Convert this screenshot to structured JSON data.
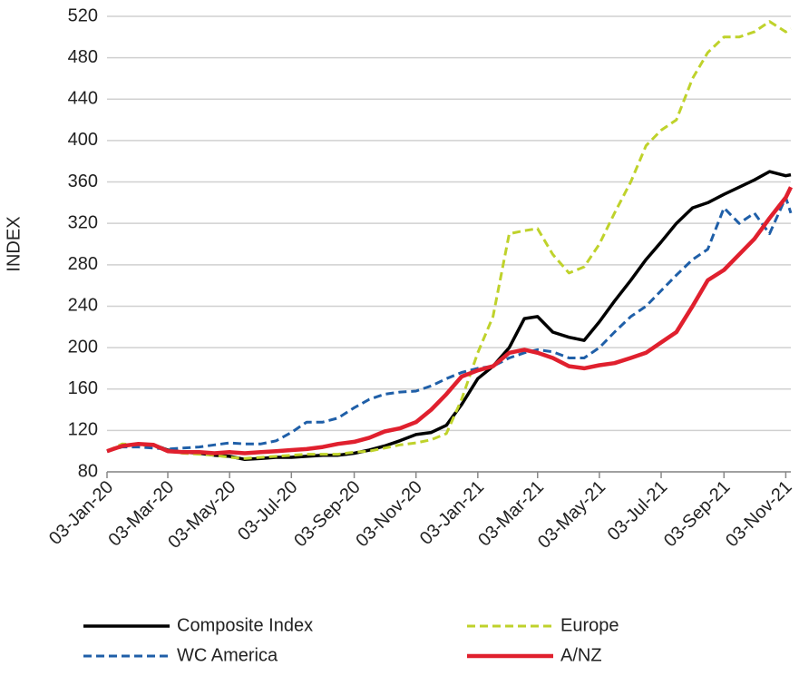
{
  "chart_data": {
    "type": "line",
    "y_label": "INDEX",
    "x": [
      "2020-01-03",
      "2020-01-18",
      "2020-02-03",
      "2020-02-18",
      "2020-03-03",
      "2020-03-18",
      "2020-04-03",
      "2020-04-18",
      "2020-05-03",
      "2020-05-18",
      "2020-06-03",
      "2020-06-18",
      "2020-07-03",
      "2020-07-18",
      "2020-08-03",
      "2020-08-18",
      "2020-09-03",
      "2020-09-18",
      "2020-10-03",
      "2020-10-18",
      "2020-11-03",
      "2020-11-18",
      "2020-12-03",
      "2020-12-18",
      "2021-01-03",
      "2021-01-18",
      "2021-02-03",
      "2021-02-18",
      "2021-03-03",
      "2021-03-18",
      "2021-04-03",
      "2021-04-18",
      "2021-05-03",
      "2021-05-18",
      "2021-06-03",
      "2021-06-18",
      "2021-07-03",
      "2021-07-18",
      "2021-08-03",
      "2021-08-18",
      "2021-09-03",
      "2021-09-18",
      "2021-10-03",
      "2021-10-18",
      "2021-11-03",
      "2021-11-08"
    ],
    "series": [
      {
        "name": "Composite Index",
        "color": "#000000",
        "dash": false,
        "width": 3.5,
        "values": [
          100,
          105,
          107,
          106,
          101,
          99,
          98,
          96,
          95,
          92,
          93,
          94,
          94,
          95,
          96,
          96,
          98,
          101,
          105,
          110,
          116,
          118,
          125,
          145,
          170,
          182,
          200,
          228,
          230,
          215,
          210,
          207,
          225,
          245,
          265,
          285,
          302,
          320,
          335,
          340,
          348,
          355,
          362,
          370,
          366,
          367
        ]
      },
      {
        "name": "Europe",
        "color": "#bfd22b",
        "dash": true,
        "width": 3,
        "values": [
          100,
          107,
          106,
          105,
          100,
          98,
          97,
          96,
          94,
          93,
          94,
          95,
          96,
          97,
          97,
          97,
          99,
          100,
          103,
          106,
          108,
          111,
          117,
          150,
          195,
          230,
          310,
          313,
          315,
          290,
          272,
          278,
          300,
          330,
          360,
          395,
          410,
          420,
          460,
          485,
          500,
          500,
          505,
          515,
          505,
          508
        ]
      },
      {
        "name": "WC America",
        "color": "#1f5fa8",
        "dash": true,
        "width": 3,
        "values": [
          100,
          104,
          104,
          103,
          102,
          103,
          104,
          106,
          108,
          107,
          107,
          110,
          118,
          128,
          128,
          132,
          142,
          150,
          155,
          157,
          158,
          163,
          170,
          176,
          180,
          182,
          190,
          195,
          198,
          196,
          190,
          190,
          200,
          215,
          230,
          240,
          255,
          270,
          285,
          295,
          335,
          320,
          330,
          310,
          345,
          330
        ]
      },
      {
        "name": "A/NZ",
        "color": "#e0202e",
        "dash": false,
        "width": 4.5,
        "values": [
          100,
          105,
          107,
          106,
          100,
          99,
          99,
          98,
          99,
          98,
          99,
          100,
          101,
          102,
          104,
          107,
          109,
          113,
          119,
          122,
          128,
          140,
          155,
          172,
          178,
          182,
          195,
          198,
          195,
          190,
          182,
          180,
          183,
          185,
          190,
          195,
          205,
          215,
          240,
          265,
          275,
          290,
          305,
          325,
          345,
          355
        ]
      }
    ],
    "xlim": [
      "2020-01-03",
      "2021-11-08"
    ],
    "xticks": [
      {
        "value": "2020-01-03",
        "label": "03-Jan-20"
      },
      {
        "value": "2020-03-03",
        "label": "03-Mar-20"
      },
      {
        "value": "2020-05-03",
        "label": "03-May-20"
      },
      {
        "value": "2020-07-03",
        "label": "03-Jul-20"
      },
      {
        "value": "2020-09-03",
        "label": "03-Sep-20"
      },
      {
        "value": "2020-11-03",
        "label": "03-Nov-20"
      },
      {
        "value": "2021-01-03",
        "label": "03-Jan-21"
      },
      {
        "value": "2021-03-03",
        "label": "03-Mar-21"
      },
      {
        "value": "2021-05-03",
        "label": "03-May-21"
      },
      {
        "value": "2021-07-03",
        "label": "03-Jul-21"
      },
      {
        "value": "2021-09-03",
        "label": "03-Sep-21"
      },
      {
        "value": "2021-11-03",
        "label": "03-Nov-21"
      }
    ],
    "ylim": [
      80,
      520
    ],
    "yticks": [
      80,
      120,
      160,
      200,
      240,
      280,
      320,
      360,
      400,
      440,
      480,
      520
    ],
    "grid": true,
    "legend": "bottom"
  }
}
